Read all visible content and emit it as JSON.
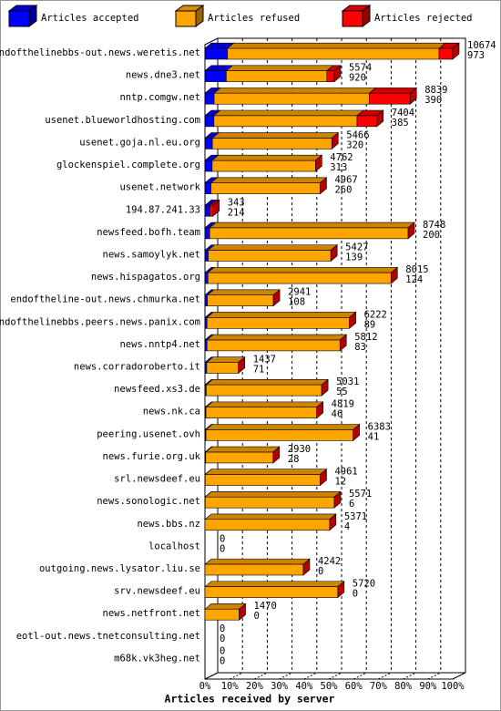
{
  "chart_data": {
    "type": "bar3d",
    "x_label": "Articles received by server",
    "categories": [
      "endofthelinebbs-out.news.weretis.net",
      "news.dne3.net",
      "nntp.comgw.net",
      "usenet.blueworldhosting.com",
      "usenet.goja.nl.eu.org",
      "glockenspiel.complete.org",
      "usenet.network",
      "194.87.241.33",
      "newsfeed.bofh.team",
      "news.samoylyk.net",
      "news.hispagatos.org",
      "endoftheline-out.news.chmurka.net",
      "endofthelinebbs.peers.news.panix.com",
      "news.nntp4.net",
      "news.corradoroberto.it",
      "newsfeed.xs3.de",
      "news.nk.ca",
      "peering.usenet.ovh",
      "news.furie.org.uk",
      "srl.newsdeef.eu",
      "news.sonologic.net",
      "news.bbs.nz",
      "localhost",
      "outgoing.news.lysator.liu.se",
      "srv.newsdeef.eu",
      "news.netfront.net",
      "eotl-out.news.tnetconsulting.net",
      "m68k.vk3heg.net"
    ],
    "series": [
      {
        "name": "Articles accepted",
        "color": "#0000ff",
        "values": [
          9.1,
          8.6,
          3.7,
          3.6,
          3.0,
          2.9,
          2.4,
          2.0,
          1.9,
          1.3,
          1.2,
          1.0,
          0.8,
          0.8,
          0.7,
          0.5,
          0.4,
          0.4,
          0.3,
          0.1,
          0.1,
          0,
          0,
          0,
          0,
          0,
          0,
          0
        ]
      },
      {
        "name": "Articles refused",
        "color": "#ffa500",
        "values": [
          85.4,
          40.6,
          62.6,
          57.8,
          48.2,
          41.7,
          44.1,
          0,
          80.1,
          49.5,
          73.9,
          26.6,
          57.5,
          53.7,
          12.8,
          46.6,
          44.7,
          59.4,
          27.2,
          46.4,
          52.1,
          50.3,
          0,
          39.7,
          53.6,
          13.8,
          0,
          0
        ]
      },
      {
        "name": "Articles rejected",
        "color": "#ff0000",
        "values": [
          5.5,
          3.0,
          16.5,
          8.0,
          0,
          0,
          0,
          1.2,
          0,
          0,
          0,
          0,
          0,
          0,
          0,
          0,
          0,
          0,
          0,
          0,
          0,
          0,
          0,
          0,
          0,
          0,
          0,
          0
        ]
      }
    ],
    "totals": [
      10674,
      5574,
      8839,
      7404,
      5466,
      4762,
      4967,
      343,
      8748,
      5427,
      8015,
      2941,
      6222,
      5812,
      1437,
      5031,
      4819,
      6383,
      2930,
      4961,
      5571,
      5371,
      0,
      4242,
      5720,
      1470,
      0,
      0
    ],
    "accepted": [
      973,
      920,
      390,
      385,
      320,
      313,
      260,
      214,
      200,
      139,
      124,
      108,
      89,
      83,
      71,
      55,
      46,
      41,
      28,
      12,
      6,
      4,
      0,
      0,
      0,
      0,
      0,
      0
    ],
    "xlim": [
      0,
      100
    ],
    "xticks": [
      {
        "value": 0,
        "label": "0%"
      },
      {
        "value": 10,
        "label": "10%"
      },
      {
        "value": 20,
        "label": "20%"
      },
      {
        "value": 30,
        "label": "30%"
      },
      {
        "value": 40,
        "label": "40%"
      },
      {
        "value": 50,
        "label": "50%"
      },
      {
        "value": 60,
        "label": "60%"
      },
      {
        "value": 70,
        "label": "70%"
      },
      {
        "value": 80,
        "label": "80%"
      },
      {
        "value": 90,
        "label": "90%"
      },
      {
        "value": 100,
        "label": "100%"
      }
    ],
    "grid": true,
    "legend": "top"
  }
}
